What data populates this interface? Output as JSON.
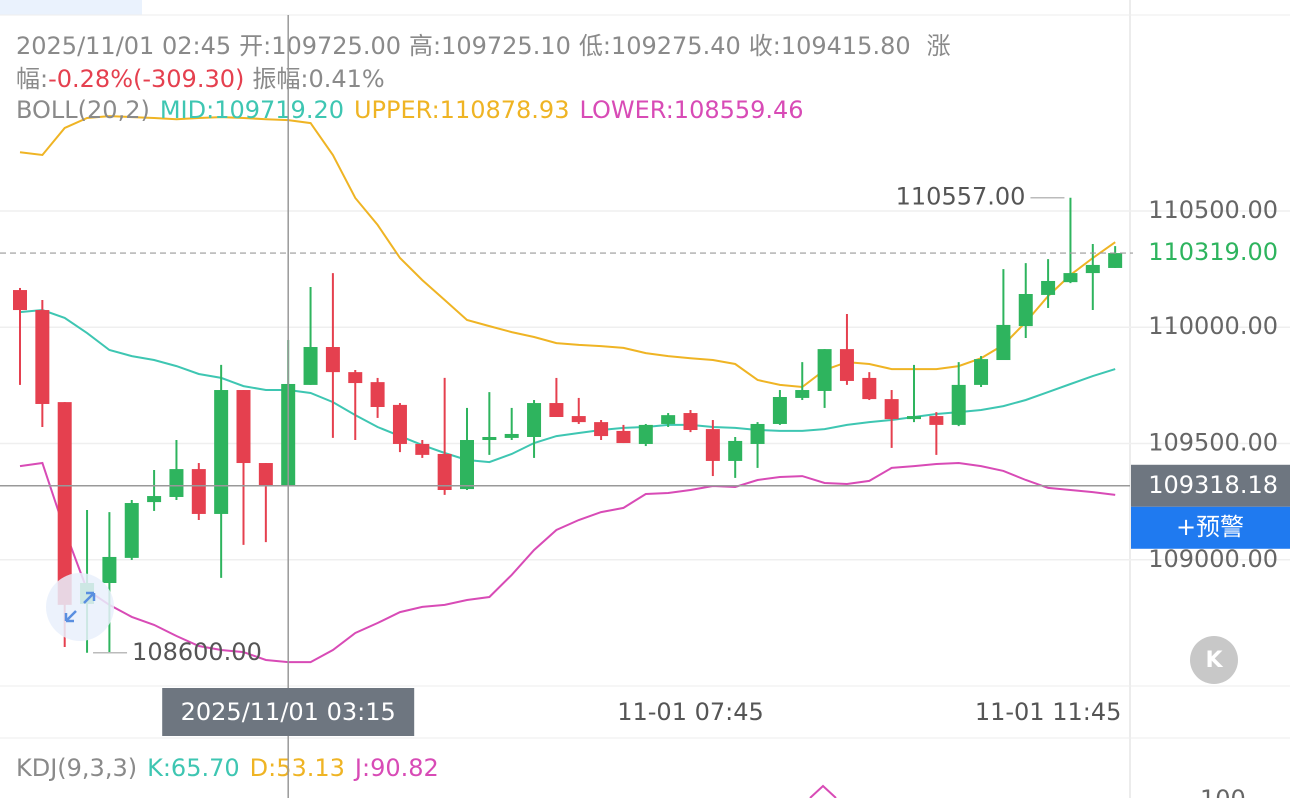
{
  "chart_data": {
    "type": "candlestick",
    "info": {
      "time": "2025/11/01 02:45",
      "open": "开:109725.00",
      "high": "高:109725.10",
      "low": "低:109275.40",
      "close": "收:109415.80",
      "change_label_1": "涨",
      "change_label_2": "幅:",
      "change": "-0.28%(-309.30)",
      "amplitude": "振幅:0.41%"
    },
    "indicator_label": "BOLL(20,2)",
    "categories": [
      null,
      null,
      null,
      null,
      null,
      null,
      null,
      null,
      null,
      null,
      null,
      null,
      null,
      null,
      null,
      null,
      null,
      null,
      null,
      null,
      null,
      null,
      null,
      null,
      null,
      null,
      null,
      null,
      null,
      null,
      "11-01 07:45",
      null,
      null,
      null,
      null,
      null,
      null,
      null,
      null,
      null,
      null,
      null,
      null,
      null,
      null,
      null,
      "11-01 11:45",
      null,
      null,
      null
    ],
    "open": [
      110160,
      110074,
      109678,
      108810,
      108900,
      109008,
      109248,
      109270,
      109390,
      109197,
      109730,
      109416,
      109317,
      109752,
      109915,
      109807,
      109764,
      109666,
      109498,
      109455,
      109304,
      109515,
      109524,
      109528,
      109674,
      109618,
      109592,
      109554,
      109498,
      109584,
      109631,
      109562,
      109425,
      109498,
      109584,
      109696,
      109726,
      109906,
      109782,
      109691,
      109605,
      109618,
      109580,
      109752,
      109859,
      110005,
      110139,
      110194,
      110233,
      110255
    ],
    "high": [
      110169,
      110117,
      109678,
      109214,
      109205,
      109257,
      109386,
      109515,
      109416,
      109838,
      109730,
      109416,
      109945,
      110173,
      110233,
      109816,
      109782,
      109674,
      109515,
      109782,
      109653,
      109721,
      109653,
      109687,
      109782,
      109696,
      109601,
      109580,
      109584,
      109631,
      109644,
      109601,
      109528,
      109592,
      109730,
      109850,
      109906,
      110057,
      109807,
      109730,
      109838,
      109635,
      109850,
      109876,
      110250,
      110276,
      110293,
      110557,
      110358,
      110349
    ],
    "low": [
      109752,
      109571,
      108625,
      108600,
      108603,
      108999,
      109210,
      109257,
      109171,
      108922,
      109064,
      109076,
      109317,
      109752,
      109524,
      109515,
      109610,
      109463,
      109438,
      109279,
      109300,
      109451,
      109515,
      109438,
      109614,
      109584,
      109515,
      109502,
      109489,
      109571,
      109549,
      109360,
      109352,
      109395,
      109580,
      109687,
      109653,
      109752,
      109687,
      109481,
      109592,
      109451,
      109575,
      109743,
      109859,
      109954,
      110083,
      110190,
      110074,
      110255
    ],
    "close": [
      110074,
      109670,
      108806,
      108900,
      109012,
      109244,
      109274,
      109390,
      109197,
      109730,
      109416,
      109317,
      109756,
      109915,
      109807,
      109760,
      109657,
      109498,
      109451,
      109300,
      109515,
      109528,
      109541,
      109674,
      109614,
      109592,
      109532,
      109502,
      109580,
      109622,
      109558,
      109425,
      109511,
      109584,
      109700,
      109730,
      109906,
      109769,
      109691,
      109605,
      109618,
      109580,
      109752,
      109863,
      110010,
      110143,
      110199,
      110233,
      110268,
      110319
    ],
    "up_color": "#2eb45e",
    "down_color": "#e5404f",
    "series": [
      {
        "name": "MID:109719.20",
        "color": "#3ec6b2",
        "values": [
          110065,
          110074,
          110040,
          109975,
          109902,
          109876,
          109859,
          109833,
          109799,
          109782,
          109747,
          109730,
          109730,
          109717,
          109678,
          109622,
          109571,
          109532,
          109493,
          109459,
          109429,
          109420,
          109455,
          109502,
          109532,
          109545,
          109558,
          109567,
          109571,
          109580,
          109580,
          109571,
          109567,
          109558,
          109554,
          109554,
          109562,
          109580,
          109592,
          109601,
          109614,
          109627,
          109635,
          109644,
          109661,
          109687,
          109721,
          109756,
          109790,
          109820
        ]
      },
      {
        "name": "UPPER:110878.93",
        "color": "#efb424",
        "values": [
          110753,
          110741,
          110857,
          110900,
          110908,
          110904,
          110900,
          110895,
          110900,
          110904,
          110900,
          110895,
          110891,
          110878,
          110741,
          110556,
          110440,
          110298,
          110203,
          110117,
          110031,
          110005,
          109979,
          109958,
          109932,
          109924,
          109919,
          109911,
          109889,
          109876,
          109867,
          109859,
          109842,
          109773,
          109752,
          109743,
          109816,
          109850,
          109842,
          109820,
          109820,
          109820,
          109833,
          109867,
          109924,
          110022,
          110134,
          110225,
          110298,
          110366
        ]
      },
      {
        "name": "LOWER:108559.46",
        "color": "#d84bb6",
        "values": [
          109403,
          109416,
          109128,
          108870,
          108806,
          108754,
          108720,
          108672,
          108629,
          108612,
          108603,
          108569,
          108560,
          108560,
          108612,
          108685,
          108728,
          108775,
          108797,
          108806,
          108827,
          108840,
          108935,
          109042,
          109128,
          109171,
          109205,
          109223,
          109283,
          109287,
          109300,
          109317,
          109313,
          109343,
          109356,
          109360,
          109330,
          109326,
          109339,
          109395,
          109403,
          109412,
          109416,
          109403,
          109382,
          109343,
          109309,
          109300,
          109291,
          109279
        ]
      }
    ],
    "ylim": [
      108457,
      111343
    ],
    "yticks": [
      {
        "value": 109000,
        "label": "109000.00"
      },
      {
        "value": 109500,
        "label": "109500.00"
      },
      {
        "value": 110000,
        "label": "110000.00"
      },
      {
        "value": 110500,
        "label": "110500.00"
      }
    ],
    "grid": true,
    "max_mark": {
      "value": 110557,
      "label": "110557.00"
    },
    "min_mark": {
      "value": 108600,
      "label": "108600.00"
    },
    "last_price": {
      "value": 110319,
      "label": "110319.00"
    },
    "crosshair": {
      "x_label": "2025/11/01 03:15",
      "price": 109318.18
    },
    "alert_button": "+预警",
    "kdj": {
      "label": "KDJ(9,3,3)",
      "k": "K:65.70",
      "d": "D:53.13",
      "j": "J:90.82",
      "top_tick": "100"
    }
  }
}
